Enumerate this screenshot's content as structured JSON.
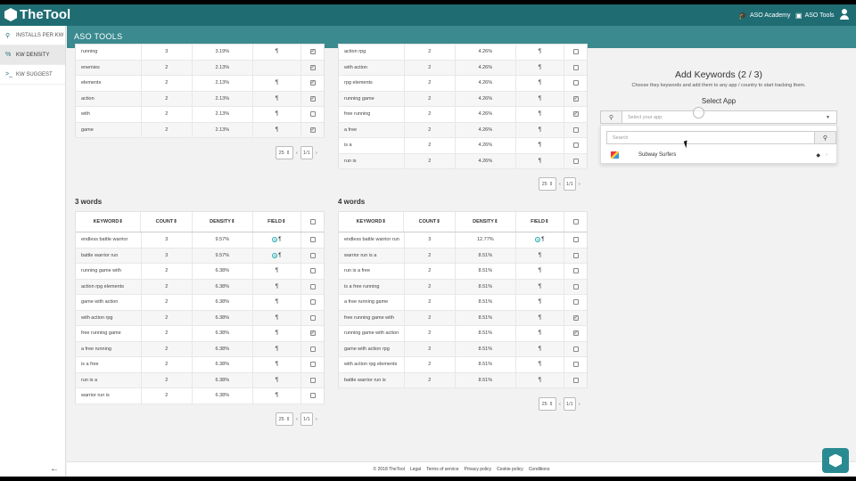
{
  "topbar": {
    "logo_text": "TheTool",
    "links": [
      {
        "label": "ASO Academy",
        "icon": "graduation-cap-icon"
      },
      {
        "label": "ASO Tools",
        "icon": "briefcase-icon"
      }
    ]
  },
  "sidebar": {
    "items": [
      {
        "label": "INSTALLS PER KW",
        "icon": "search-icon"
      },
      {
        "label": "KW DENSITY",
        "icon": "percent-icon"
      },
      {
        "label": "KW SUGGEST",
        "icon": "terminal-icon"
      }
    ]
  },
  "subheader": {
    "title": "ASO TOOLS"
  },
  "headers": {
    "keyword": "KEYWORD",
    "count": "COUNT",
    "density": "DENSITY",
    "field": "FIELD"
  },
  "tables": {
    "two_words_partial": {
      "rows": [
        {
          "kw": "running",
          "count": "3",
          "density": "3.19%",
          "field": "¶",
          "check": true
        },
        {
          "kw": "enemies",
          "count": "2",
          "density": "2.13%",
          "field": "",
          "check": true
        },
        {
          "kw": "elements",
          "count": "2",
          "density": "2.13%",
          "field": "¶",
          "check": true
        },
        {
          "kw": "action",
          "count": "2",
          "density": "2.13%",
          "field": "¶",
          "check": true
        },
        {
          "kw": "with",
          "count": "2",
          "density": "2.13%",
          "field": "¶",
          "check": false
        },
        {
          "kw": "game",
          "count": "2",
          "density": "2.13%",
          "field": "¶",
          "check": true
        }
      ],
      "pager": {
        "per_page": "25",
        "page": "1/1"
      }
    },
    "three_words_partial": {
      "rows": [
        {
          "kw": "action rpg",
          "count": "2",
          "density": "4.26%",
          "field": "¶",
          "check": false
        },
        {
          "kw": "with action",
          "count": "2",
          "density": "4.26%",
          "field": "¶",
          "check": false
        },
        {
          "kw": "rpg elements",
          "count": "2",
          "density": "4.26%",
          "field": "¶",
          "check": false
        },
        {
          "kw": "running game",
          "count": "2",
          "density": "4.26%",
          "field": "¶",
          "check": true
        },
        {
          "kw": "free running",
          "count": "2",
          "density": "4.26%",
          "field": "¶",
          "check": true
        },
        {
          "kw": "a free",
          "count": "2",
          "density": "4.26%",
          "field": "¶",
          "check": false
        },
        {
          "kw": "is a",
          "count": "2",
          "density": "4.26%",
          "field": "¶",
          "check": false
        },
        {
          "kw": "run is",
          "count": "2",
          "density": "4.26%",
          "field": "¶",
          "check": false
        }
      ],
      "pager": {
        "per_page": "25",
        "page": "1/1"
      }
    },
    "three_words": {
      "title": "3 words",
      "rows": [
        {
          "kw": "endless battle warrior",
          "count": "3",
          "density": "9.57%",
          "field": "¶",
          "g": true,
          "check": false
        },
        {
          "kw": "battle warrior run",
          "count": "3",
          "density": "9.57%",
          "field": "¶",
          "g": true,
          "check": false
        },
        {
          "kw": "running game with",
          "count": "2",
          "density": "6.38%",
          "field": "¶",
          "check": false
        },
        {
          "kw": "action rpg elements",
          "count": "2",
          "density": "6.38%",
          "field": "¶",
          "check": false
        },
        {
          "kw": "game with action",
          "count": "2",
          "density": "6.38%",
          "field": "¶",
          "check": false
        },
        {
          "kw": "with action rpg",
          "count": "2",
          "density": "6.38%",
          "field": "¶",
          "check": false
        },
        {
          "kw": "free running game",
          "count": "2",
          "density": "6.38%",
          "field": "¶",
          "check": true
        },
        {
          "kw": "a free running",
          "count": "2",
          "density": "6.38%",
          "field": "¶",
          "check": false
        },
        {
          "kw": "is a free",
          "count": "2",
          "density": "6.38%",
          "field": "¶",
          "check": false
        },
        {
          "kw": "run is a",
          "count": "2",
          "density": "6.38%",
          "field": "¶",
          "check": false
        },
        {
          "kw": "warrior run is",
          "count": "2",
          "density": "6.38%",
          "field": "¶",
          "check": false
        }
      ],
      "pager": {
        "per_page": "25",
        "page": "1/1"
      }
    },
    "four_words": {
      "title": "4 words",
      "rows": [
        {
          "kw": "endless battle warrior run",
          "count": "3",
          "density": "12.77%",
          "field": "¶",
          "g": true,
          "check": false
        },
        {
          "kw": "warrior run is a",
          "count": "2",
          "density": "8.51%",
          "field": "¶",
          "check": false
        },
        {
          "kw": "run is a free",
          "count": "2",
          "density": "8.51%",
          "field": "¶",
          "check": false
        },
        {
          "kw": "is a free running",
          "count": "2",
          "density": "8.51%",
          "field": "¶",
          "check": false
        },
        {
          "kw": "a free running game",
          "count": "2",
          "density": "8.51%",
          "field": "¶",
          "check": false
        },
        {
          "kw": "free running game with",
          "count": "2",
          "density": "8.51%",
          "field": "¶",
          "check": true
        },
        {
          "kw": "running game with action",
          "count": "2",
          "density": "8.51%",
          "field": "¶",
          "check": true
        },
        {
          "kw": "game with action rpg",
          "count": "2",
          "density": "8.51%",
          "field": "¶",
          "check": false
        },
        {
          "kw": "with action rpg elements",
          "count": "2",
          "density": "8.51%",
          "field": "¶",
          "check": false
        },
        {
          "kw": "battle warrior run is",
          "count": "2",
          "density": "8.51%",
          "field": "¶",
          "check": false
        }
      ],
      "pager": {
        "per_page": "25",
        "page": "1/1"
      }
    }
  },
  "panel": {
    "title": "Add Keywords (2 / 3)",
    "description": "Choose they keywords and add them to any app / country to start tracking them.",
    "select_label": "Select App",
    "select_placeholder": "Select your app",
    "search_placeholder": "Search",
    "option": "Subway Surfers"
  },
  "footer": {
    "items": [
      "© 2018 TheTool",
      "Legal",
      "Terms of service",
      "Privacy policy",
      "Cookie policy",
      "Conditions"
    ]
  },
  "colors": {
    "topbar": "#1f6d73",
    "subheader": "#3a8a8f",
    "accent": "#2a8a92"
  }
}
